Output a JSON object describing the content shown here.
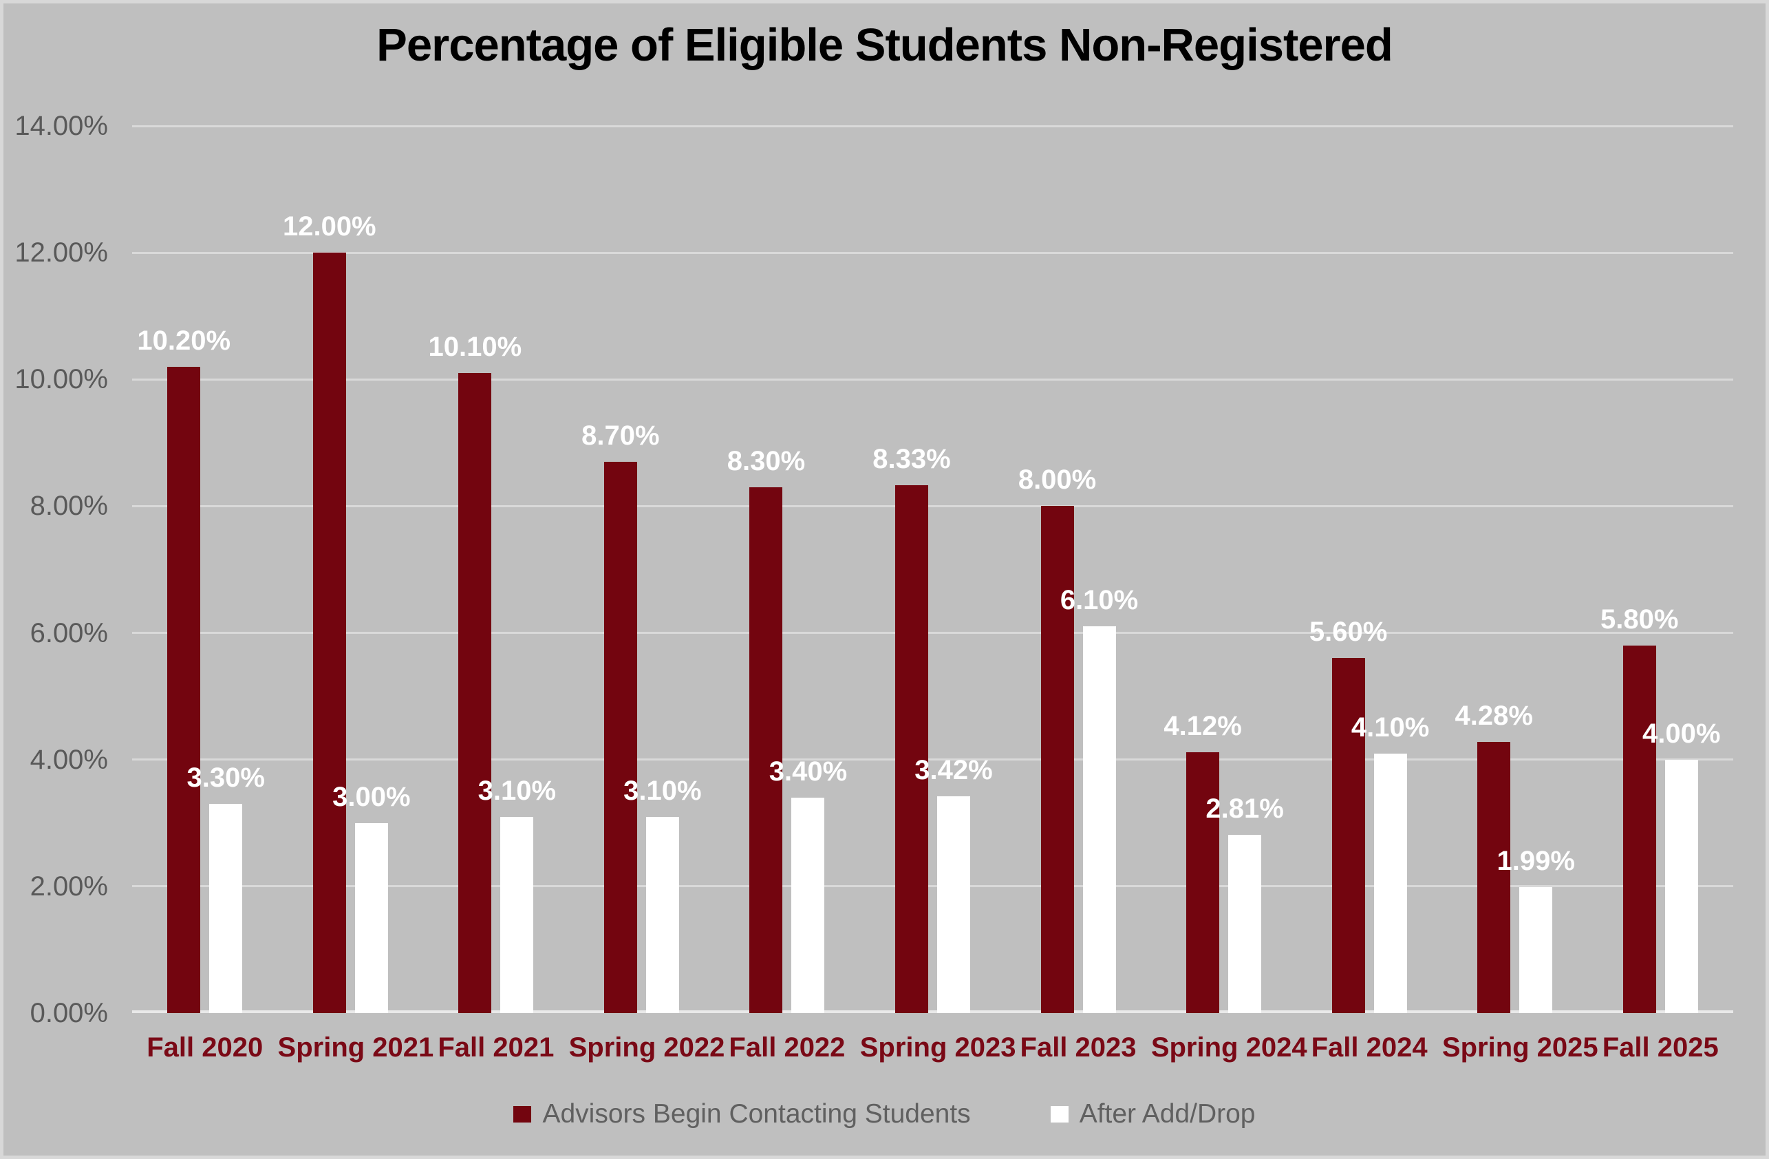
{
  "chart_data": {
    "type": "bar",
    "title": "Percentage of Eligible Students Non-Registered",
    "categories": [
      "Fall 2020",
      "Spring 2021",
      "Fall 2021",
      "Spring 2022",
      "Fall 2022",
      "Spring 2023",
      "Fall 2023",
      "Spring 2024",
      "Fall 2024",
      "Spring 2025",
      "Fall 2025"
    ],
    "series": [
      {
        "name": "Advisors Begin Contacting Students",
        "color": "#73050F",
        "values": [
          10.2,
          12.0,
          10.1,
          8.7,
          8.3,
          8.33,
          8.0,
          4.12,
          5.6,
          4.28,
          5.8
        ],
        "labels": [
          "10.20%",
          "12.00%",
          "10.10%",
          "8.70%",
          "8.30%",
          "8.33%",
          "8.00%",
          "4.12%",
          "5.60%",
          "4.28%",
          "5.80%"
        ]
      },
      {
        "name": "After Add/Drop",
        "color": "#FFFFFF",
        "values": [
          3.3,
          3.0,
          3.1,
          3.1,
          3.4,
          3.42,
          6.1,
          2.81,
          4.1,
          1.99,
          4.0
        ],
        "labels": [
          "3.30%",
          "3.00%",
          "3.10%",
          "3.10%",
          "3.40%",
          "3.42%",
          "6.10%",
          "2.81%",
          "4.10%",
          "1.99%",
          "4.00%"
        ]
      }
    ],
    "y_axis": {
      "min": 0,
      "max": 14,
      "tick_step": 2,
      "tick_labels": [
        "0.00%",
        "2.00%",
        "4.00%",
        "6.00%",
        "8.00%",
        "10.00%",
        "12.00%",
        "14.00%"
      ]
    },
    "grid": true,
    "legend_position": "bottom",
    "colors": {
      "background": "#BFBFBF",
      "page_border": "#D8D8D8",
      "gridline": "#D9D9D9",
      "axis_line": "#E9E9E9",
      "bar_advisors": "#73050F",
      "bar_after_add_drop": "#FFFFFF",
      "value_label_text": "#FFFFFF",
      "category_label_text": "#7A0916",
      "axis_text": "#595959",
      "legend_text": "#606060",
      "title_text": "#000000"
    }
  }
}
